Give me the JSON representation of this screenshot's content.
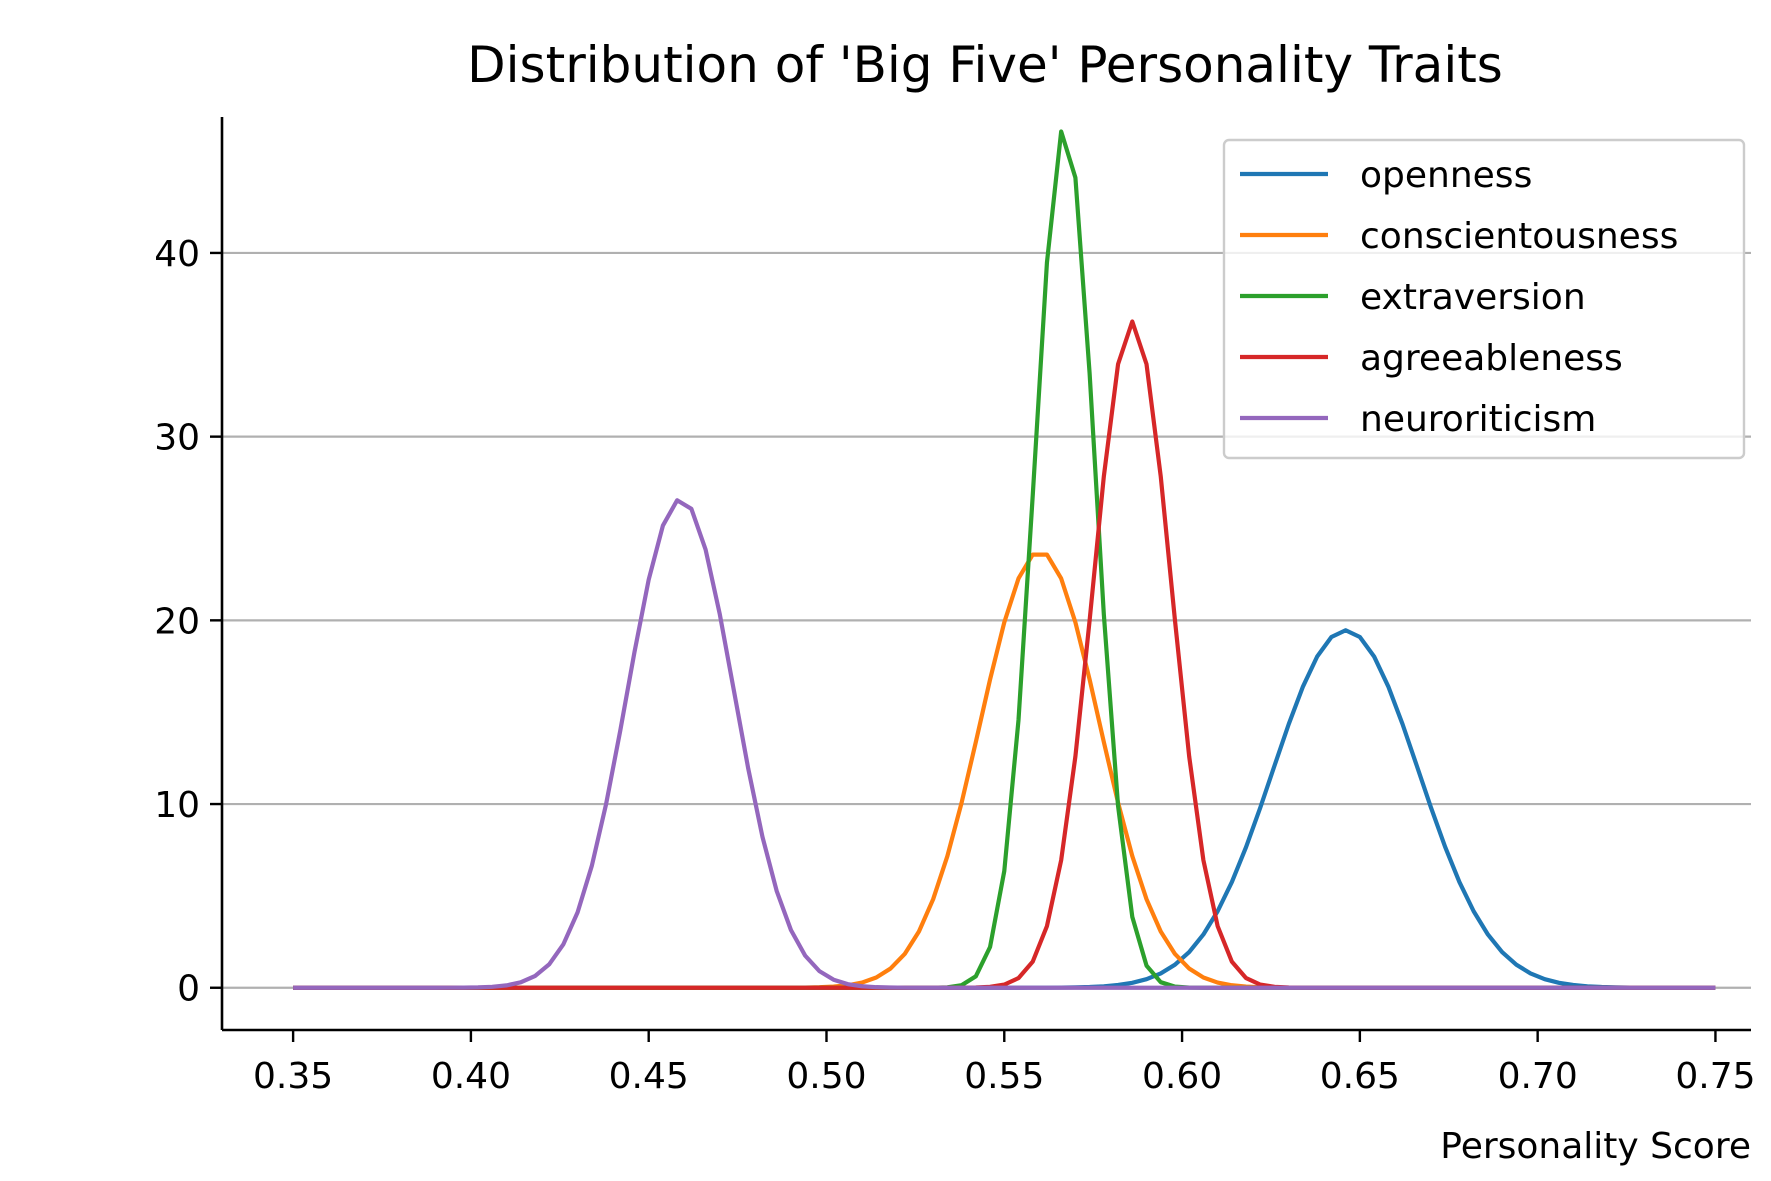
{
  "chart_data": {
    "type": "line",
    "title": "Distribution of 'Big Five' Personality Traits",
    "xlabel": "Personality Score",
    "ylabel": "",
    "xlim": [
      0.33,
      0.76
    ],
    "ylim": [
      -2.3,
      47.4
    ],
    "xticks": [
      0.35,
      0.4,
      0.45,
      0.5,
      0.55,
      0.6,
      0.65,
      0.7,
      0.75
    ],
    "xtick_labels": [
      "0.35",
      "0.40",
      "0.45",
      "0.50",
      "0.55",
      "0.60",
      "0.65",
      "0.70",
      "0.75"
    ],
    "yticks": [
      0,
      10,
      20,
      30,
      40
    ],
    "ytick_labels": [
      "0",
      "10",
      "20",
      "30",
      "40"
    ],
    "grid": "horizontal",
    "legend_position": "top-right",
    "x_range": [
      0.35,
      0.75
    ],
    "num_points": 101,
    "series": [
      {
        "name": "openness",
        "color": "#1f77b4",
        "mu": 0.646,
        "sigma": 0.0205
      },
      {
        "name": "conscientousness",
        "color": "#ff7f0e",
        "mu": 0.56,
        "sigma": 0.0168
      },
      {
        "name": "extraversion",
        "color": "#2ca02c",
        "mu": 0.567,
        "sigma": 0.0085
      },
      {
        "name": "agreeableness",
        "color": "#d62728",
        "mu": 0.586,
        "sigma": 0.011
      },
      {
        "name": "neuroriticism",
        "color": "#9467bd",
        "mu": 0.459,
        "sigma": 0.015
      }
    ]
  }
}
